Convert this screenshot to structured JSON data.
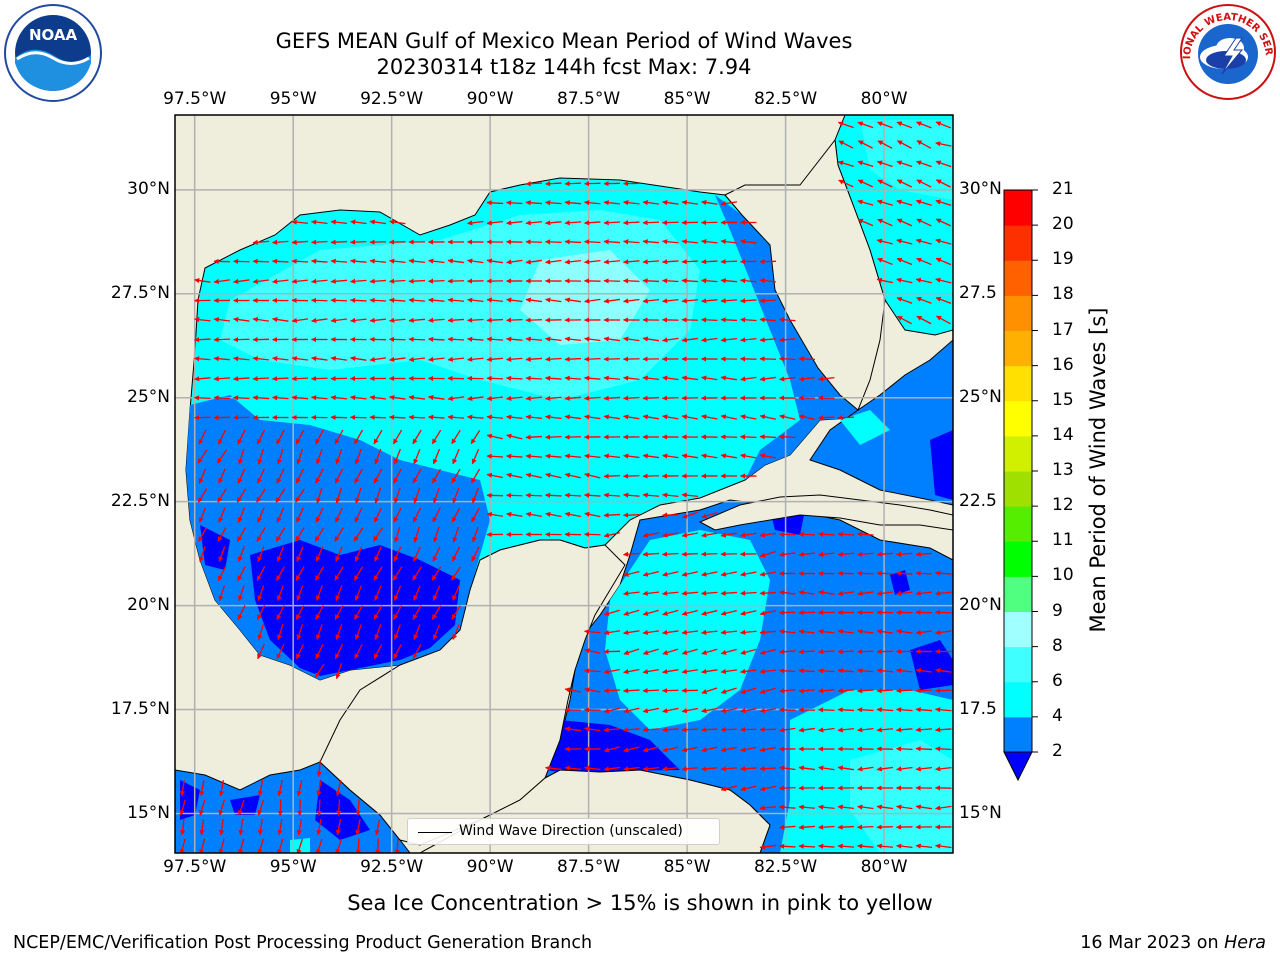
{
  "title": {
    "line1": "GEFS MEAN Gulf of Mexico Mean Period of Wind Waves",
    "line2": "20230314 t18z 144h fcst   Max: 7.94"
  },
  "logos": {
    "left": {
      "name": "noaa-logo",
      "text": "NOAA"
    },
    "right": {
      "name": "nws-logo",
      "text": "NATIONAL WEATHER SERVICE"
    }
  },
  "axes": {
    "lon_labels": [
      "97.5°W",
      "95°W",
      "92.5°W",
      "90°W",
      "87.5°W",
      "85°W",
      "82.5°W",
      "80°W"
    ],
    "lon_values": [
      -97.5,
      -95,
      -92.5,
      -90,
      -87.5,
      -85,
      -82.5,
      -80
    ],
    "lat_labels_left": [
      "30°N",
      "27.5°N",
      "25°N",
      "22.5°N",
      "20°N",
      "17.5°N",
      "15°N"
    ],
    "lat_labels_right": [
      "30°N",
      "27.5",
      "25°N",
      "22.5",
      "20°N",
      "17.5",
      "15°N"
    ],
    "lat_values": [
      30,
      27.5,
      25,
      22.5,
      20,
      17.5,
      15
    ],
    "extent": {
      "lon_min": -98,
      "lon_max": -78.25,
      "lat_min": 14.05,
      "lat_max": 31.8
    }
  },
  "colorbar": {
    "label": "Mean Period of Wind Waves [s]",
    "ticks": [
      "2",
      "4",
      "6",
      "8",
      "9",
      "10",
      "11",
      "12",
      "13",
      "14",
      "15",
      "16",
      "17",
      "18",
      "19",
      "20",
      "21"
    ],
    "levels": [
      2,
      4,
      6,
      8,
      9,
      10,
      11,
      12,
      13,
      14,
      15,
      16,
      17,
      18,
      19,
      20,
      21
    ],
    "colors": [
      "#0080ff",
      "#00ffff",
      "#40ffff",
      "#a0ffff",
      "#50ff80",
      "#00ff00",
      "#55ee00",
      "#a0e000",
      "#d0f000",
      "#ffff00",
      "#ffe000",
      "#ffb000",
      "#ff9000",
      "#ff6000",
      "#ff3000",
      "#ff0000"
    ],
    "under_color": "#0000ff"
  },
  "legend": {
    "label": "Wind Wave Direction (unscaled)"
  },
  "footer": {
    "note": "Sea Ice Concentration > 15% is shown in pink to yellow",
    "credit": "NCEP/EMC/Verification Post Processing Product Generation Branch",
    "date": "16 Mar 2023 on ",
    "host": "Hera"
  },
  "palette": {
    "land": "#efeedc",
    "arrow": "#ff0000",
    "coast": "#000000",
    "grid": "#b0b0b0"
  }
}
